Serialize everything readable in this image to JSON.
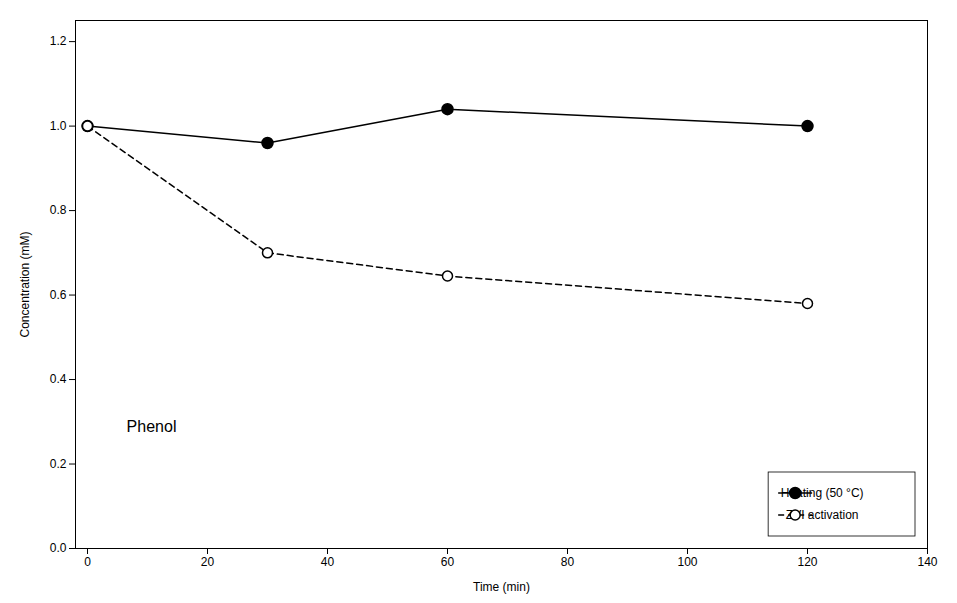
{
  "chart_data": {
    "type": "line",
    "xlabel": "Time (min)",
    "ylabel": "Concentration (mM)",
    "x": [
      0,
      30,
      60,
      120
    ],
    "series": [
      {
        "name": "Heating (50 °C)",
        "color": "#000000",
        "values": [
          1.0,
          0.96,
          1.04,
          1.0
        ],
        "marker": "circle",
        "line_style": "solid"
      },
      {
        "name": "ZVI activation",
        "color": "#000000",
        "values": [
          1.0,
          0.7,
          0.645,
          0.58
        ],
        "marker": "open_circle",
        "line_style": "dashed"
      }
    ],
    "xlim": [
      -2,
      140
    ],
    "ylim": [
      0.0,
      1.25
    ],
    "xticks": [
      0,
      20,
      40,
      60,
      80,
      100,
      120,
      140
    ],
    "yticks": [
      {
        "value": 0,
        "label": "0.0"
      },
      0.2,
      0.4,
      0.6,
      0.8,
      {
        "value": 1,
        "label": "1.0"
      },
      1.2
    ],
    "annotation": "Phenol",
    "legend": "lower right",
    "grid": false
  }
}
